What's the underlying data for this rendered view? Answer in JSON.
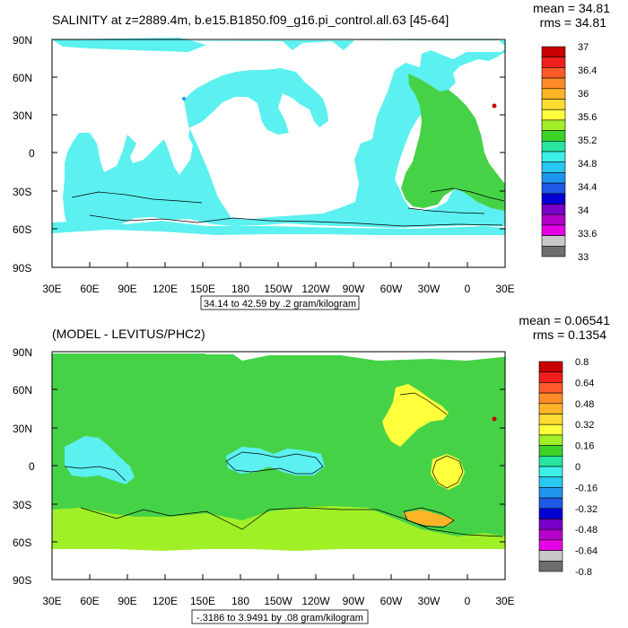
{
  "panels": [
    {
      "title": "SALINITY at z=2889.4m, b.e15.B1850.f09_g16.pi_control.all.63 [45-64]",
      "mean_label": "mean = 34.81",
      "rms_label": "rms = 34.81",
      "range_note": "34.14 to 42.59 by .2 gram/kilogram",
      "colorbar_labels": [
        "37",
        "36.4",
        "36",
        "35.6",
        "35.2",
        "34.8",
        "34.4",
        "34",
        "33.6",
        "33"
      ],
      "colorbar_colors": [
        "#c80000",
        "#f01e1e",
        "#ff5a28",
        "#ff8c28",
        "#ffb428",
        "#ffdc32",
        "#ffff3c",
        "#a0f028",
        "#3cd228",
        "#28e6a0",
        "#3cf0e6",
        "#28c8f0",
        "#1e96f0",
        "#1e5ae6",
        "#0000d2",
        "#7800c8",
        "#b400c8",
        "#e600e6",
        "#c8c8c8",
        "#6e6e6e"
      ]
    },
    {
      "title": "(MODEL - LEVITUS/PHC2)",
      "mean_label": "mean = 0.06541",
      "rms_label": "rms = 0.1354",
      "range_note": "-.3186 to 3.9491 by .08 gram/kilogram",
      "colorbar_labels": [
        "0.8",
        "0.64",
        "0.48",
        "0.32",
        "0.16",
        "0",
        "-0.16",
        "-0.32",
        "-0.48",
        "-0.64",
        "-0.8"
      ],
      "colorbar_colors": [
        "#c80000",
        "#f01e1e",
        "#ff5a28",
        "#ff8c28",
        "#ffb428",
        "#ffdc32",
        "#ffff3c",
        "#a0f028",
        "#3cd228",
        "#28e6a0",
        "#3cf0e6",
        "#28c8f0",
        "#1e96f0",
        "#1e5ae6",
        "#0000d2",
        "#7800c8",
        "#b400c8",
        "#e600e6",
        "#c8c8c8",
        "#6e6e6e"
      ]
    }
  ],
  "axes": {
    "lat_labels": [
      "90N",
      "60N",
      "30N",
      "0",
      "30S",
      "60S",
      "90S"
    ],
    "lon_labels": [
      "30E",
      "60E",
      "90E",
      "120E",
      "150E",
      "180",
      "150W",
      "120W",
      "90W",
      "60W",
      "30W",
      "0",
      "30E"
    ]
  },
  "fill_colors": {
    "salinity_field": "#5cf0f0",
    "salinity_atlantic": "#46d246",
    "diff_field": "#46d246",
    "diff_positive_high": "#ffff3c",
    "diff_positive_mid": "#a0f028",
    "diff_negative": "#5cf0f0",
    "hotspot": "#c80000"
  }
}
